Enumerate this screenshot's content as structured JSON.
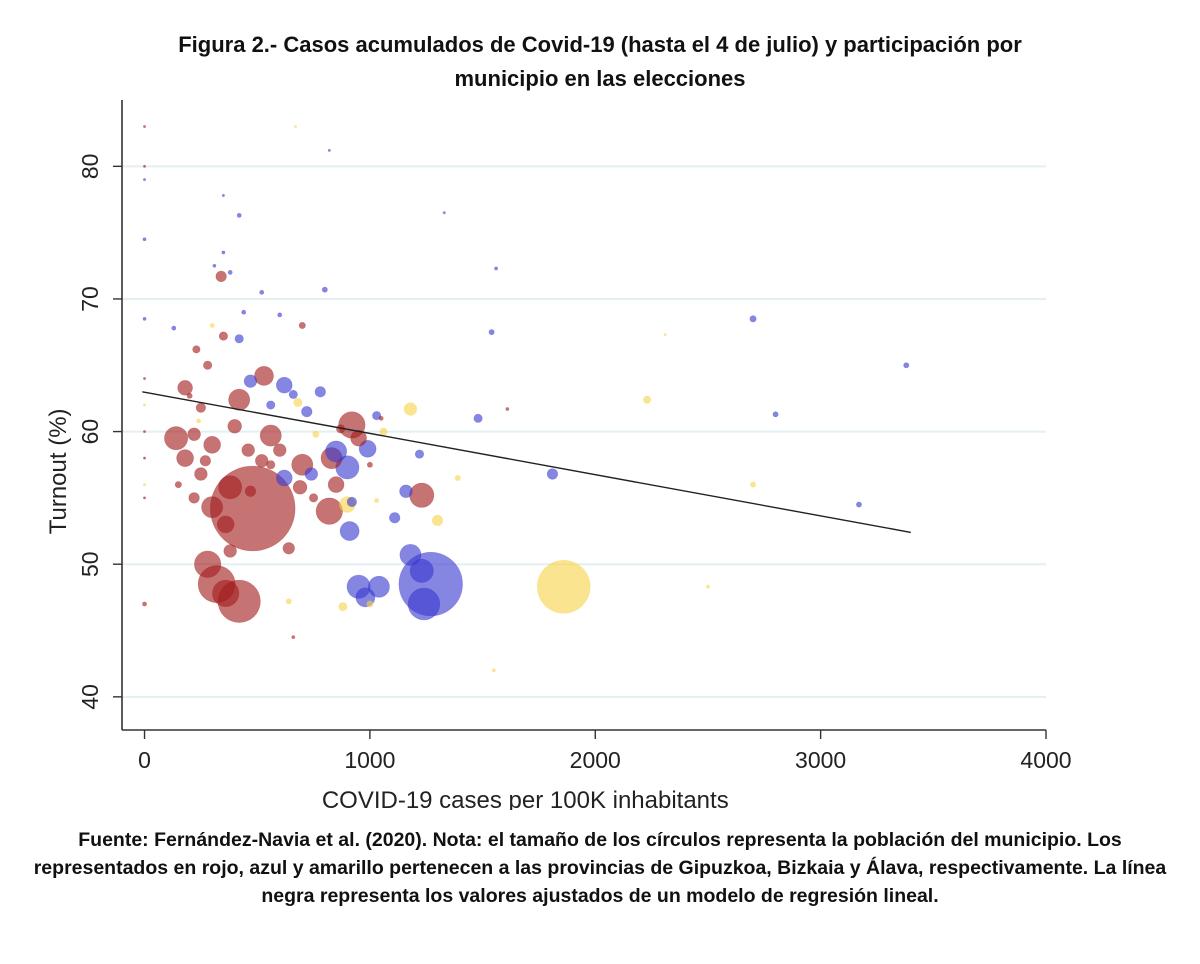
{
  "title_line1": "Figura 2.- Casos acumulados de Covid-19 (hasta el 4 de julio) y participación por",
  "title_line2": "municipio en las elecciones",
  "note": "Fuente: Fernández-Navia et al. (2020). Nota: el tamaño de los círculos representa la población del municipio. Los representados en rojo, azul y amarillo pertenecen a las provincias de Gipuzkoa, Bizkaia y Álava, respectivamente. La línea negra representa los valores ajustados de un modelo de regresión lineal.",
  "colors": {
    "Gipuzkoa": "#a31d1d",
    "Bizkaia": "#3a3ad0",
    "Álava": "#f7d44a",
    "fit": "#222222",
    "grid": "#e3eff2"
  },
  "chart_data": {
    "type": "scatter",
    "title": "",
    "xlabel": "COVID-19 cases per 100K inhabitants",
    "ylabel": "Turnout (%)",
    "xlim": [
      -100,
      4000
    ],
    "ylim": [
      37.5,
      85
    ],
    "xticks": [
      0,
      1000,
      2000,
      3000,
      4000
    ],
    "yticks": [
      40,
      50,
      60,
      70,
      80
    ],
    "grid": "horizontal",
    "size_encodes": "population",
    "fit_line": {
      "x": [
        -10,
        3400
      ],
      "y": [
        63.0,
        52.4
      ]
    },
    "series": [
      {
        "group": "Gipuzkoa",
        "points": [
          {
            "x": 480,
            "y": 54.2,
            "s": 8.0
          },
          {
            "x": 420,
            "y": 47.2,
            "s": 4.0
          },
          {
            "x": 320,
            "y": 48.5,
            "s": 3.5
          },
          {
            "x": 360,
            "y": 47.8,
            "s": 2.5
          },
          {
            "x": 280,
            "y": 50.0,
            "s": 2.5
          },
          {
            "x": 140,
            "y": 59.5,
            "s": 2.2
          },
          {
            "x": 420,
            "y": 62.4,
            "s": 2.0
          },
          {
            "x": 530,
            "y": 64.2,
            "s": 1.8
          },
          {
            "x": 180,
            "y": 58.0,
            "s": 1.6
          },
          {
            "x": 300,
            "y": 59.0,
            "s": 1.6
          },
          {
            "x": 300,
            "y": 54.3,
            "s": 2.0
          },
          {
            "x": 380,
            "y": 55.8,
            "s": 2.2
          },
          {
            "x": 560,
            "y": 59.7,
            "s": 2.0
          },
          {
            "x": 700,
            "y": 57.5,
            "s": 2.0
          },
          {
            "x": 820,
            "y": 54.0,
            "s": 2.5
          },
          {
            "x": 830,
            "y": 58.0,
            "s": 2.0
          },
          {
            "x": 850,
            "y": 56.0,
            "s": 1.5
          },
          {
            "x": 920,
            "y": 60.5,
            "s": 2.5
          },
          {
            "x": 950,
            "y": 59.5,
            "s": 1.5
          },
          {
            "x": 1230,
            "y": 55.2,
            "s": 2.3
          },
          {
            "x": 180,
            "y": 63.3,
            "s": 1.4
          },
          {
            "x": 340,
            "y": 71.7,
            "s": 1.0
          },
          {
            "x": 350,
            "y": 67.2,
            "s": 0.8
          },
          {
            "x": 280,
            "y": 65.0,
            "s": 0.8
          },
          {
            "x": 250,
            "y": 61.8,
            "s": 0.9
          },
          {
            "x": 220,
            "y": 59.8,
            "s": 1.2
          },
          {
            "x": 150,
            "y": 56.0,
            "s": 0.6
          },
          {
            "x": 220,
            "y": 55.0,
            "s": 1.0
          },
          {
            "x": 270,
            "y": 57.8,
            "s": 1.0
          },
          {
            "x": 250,
            "y": 56.8,
            "s": 1.2
          },
          {
            "x": 400,
            "y": 60.4,
            "s": 1.3
          },
          {
            "x": 460,
            "y": 58.6,
            "s": 1.2
          },
          {
            "x": 470,
            "y": 55.5,
            "s": 1.0
          },
          {
            "x": 520,
            "y": 57.8,
            "s": 1.2
          },
          {
            "x": 600,
            "y": 58.6,
            "s": 1.2
          },
          {
            "x": 640,
            "y": 51.2,
            "s": 1.1
          },
          {
            "x": 690,
            "y": 55.8,
            "s": 1.3
          },
          {
            "x": 380,
            "y": 51.0,
            "s": 1.2
          },
          {
            "x": 360,
            "y": 53.0,
            "s": 1.6
          },
          {
            "x": 230,
            "y": 66.2,
            "s": 0.7
          },
          {
            "x": 200,
            "y": 62.7,
            "s": 0.5
          },
          {
            "x": 700,
            "y": 68.0,
            "s": 0.6
          },
          {
            "x": 750,
            "y": 55.0,
            "s": 0.8
          },
          {
            "x": 560,
            "y": 57.5,
            "s": 0.8
          },
          {
            "x": 0,
            "y": 60.0,
            "s": 0.2
          },
          {
            "x": 0,
            "y": 64.0,
            "s": 0.2
          },
          {
            "x": 0,
            "y": 58.0,
            "s": 0.2
          },
          {
            "x": 0,
            "y": 55.0,
            "s": 0.2
          },
          {
            "x": 0,
            "y": 83.0,
            "s": 0.1
          },
          {
            "x": 0,
            "y": 80.0,
            "s": 0.1
          },
          {
            "x": 0,
            "y": 47.0,
            "s": 0.4
          },
          {
            "x": 1050,
            "y": 61.0,
            "s": 0.4
          },
          {
            "x": 1610,
            "y": 61.7,
            "s": 0.3
          },
          {
            "x": 660,
            "y": 44.5,
            "s": 0.3
          },
          {
            "x": 1000,
            "y": 57.5,
            "s": 0.5
          },
          {
            "x": 870,
            "y": 60.2,
            "s": 0.8
          }
        ]
      },
      {
        "group": "Bizkaia",
        "points": [
          {
            "x": 1270,
            "y": 48.5,
            "s": 6.0
          },
          {
            "x": 1240,
            "y": 47.0,
            "s": 3.0
          },
          {
            "x": 1180,
            "y": 50.7,
            "s": 2.0
          },
          {
            "x": 1230,
            "y": 49.5,
            "s": 2.2
          },
          {
            "x": 950,
            "y": 48.3,
            "s": 2.2
          },
          {
            "x": 1040,
            "y": 48.3,
            "s": 2.0
          },
          {
            "x": 980,
            "y": 47.5,
            "s": 1.8
          },
          {
            "x": 910,
            "y": 52.5,
            "s": 1.8
          },
          {
            "x": 900,
            "y": 57.3,
            "s": 2.2
          },
          {
            "x": 850,
            "y": 58.5,
            "s": 2.0
          },
          {
            "x": 990,
            "y": 58.7,
            "s": 1.6
          },
          {
            "x": 1160,
            "y": 55.5,
            "s": 1.2
          },
          {
            "x": 1110,
            "y": 53.5,
            "s": 1.0
          },
          {
            "x": 620,
            "y": 63.5,
            "s": 1.5
          },
          {
            "x": 470,
            "y": 63.8,
            "s": 1.2
          },
          {
            "x": 780,
            "y": 63.0,
            "s": 1.0
          },
          {
            "x": 720,
            "y": 61.5,
            "s": 1.0
          },
          {
            "x": 560,
            "y": 62.0,
            "s": 0.8
          },
          {
            "x": 620,
            "y": 56.5,
            "s": 1.5
          },
          {
            "x": 740,
            "y": 56.8,
            "s": 1.2
          },
          {
            "x": 1220,
            "y": 58.3,
            "s": 0.8
          },
          {
            "x": 1480,
            "y": 61.0,
            "s": 0.8
          },
          {
            "x": 1810,
            "y": 56.8,
            "s": 1.0
          },
          {
            "x": 2700,
            "y": 68.5,
            "s": 0.6
          },
          {
            "x": 2800,
            "y": 61.3,
            "s": 0.5
          },
          {
            "x": 3170,
            "y": 54.5,
            "s": 0.5
          },
          {
            "x": 3380,
            "y": 65.0,
            "s": 0.5
          },
          {
            "x": 1540,
            "y": 67.5,
            "s": 0.5
          },
          {
            "x": 1560,
            "y": 72.3,
            "s": 0.3
          },
          {
            "x": 1330,
            "y": 76.5,
            "s": 0.2
          },
          {
            "x": 420,
            "y": 67.0,
            "s": 0.8
          },
          {
            "x": 800,
            "y": 70.7,
            "s": 0.5
          },
          {
            "x": 520,
            "y": 70.5,
            "s": 0.4
          },
          {
            "x": 440,
            "y": 69.0,
            "s": 0.4
          },
          {
            "x": 380,
            "y": 72.0,
            "s": 0.4
          },
          {
            "x": 420,
            "y": 76.3,
            "s": 0.4
          },
          {
            "x": 350,
            "y": 73.5,
            "s": 0.3
          },
          {
            "x": 310,
            "y": 72.5,
            "s": 0.3
          },
          {
            "x": 130,
            "y": 67.8,
            "s": 0.4
          },
          {
            "x": 0,
            "y": 74.5,
            "s": 0.3
          },
          {
            "x": 0,
            "y": 79.0,
            "s": 0.2
          },
          {
            "x": 0,
            "y": 68.5,
            "s": 0.3
          },
          {
            "x": 820,
            "y": 81.2,
            "s": 0.2
          },
          {
            "x": 600,
            "y": 68.8,
            "s": 0.4
          },
          {
            "x": 660,
            "y": 62.8,
            "s": 0.8
          },
          {
            "x": 1030,
            "y": 61.2,
            "s": 0.8
          },
          {
            "x": 920,
            "y": 54.7,
            "s": 0.9
          },
          {
            "x": 350,
            "y": 77.8,
            "s": 0.2
          }
        ]
      },
      {
        "group": "Álava",
        "points": [
          {
            "x": 1860,
            "y": 48.3,
            "s": 5.0
          },
          {
            "x": 900,
            "y": 54.5,
            "s": 1.5
          },
          {
            "x": 1180,
            "y": 61.7,
            "s": 1.2
          },
          {
            "x": 1300,
            "y": 53.3,
            "s": 1.0
          },
          {
            "x": 2230,
            "y": 62.4,
            "s": 0.7
          },
          {
            "x": 880,
            "y": 46.8,
            "s": 0.8
          },
          {
            "x": 1000,
            "y": 47.0,
            "s": 0.6
          },
          {
            "x": 640,
            "y": 47.2,
            "s": 0.5
          },
          {
            "x": 2700,
            "y": 56.0,
            "s": 0.5
          },
          {
            "x": 1550,
            "y": 42.0,
            "s": 0.3
          },
          {
            "x": 670,
            "y": 83.0,
            "s": 0.2
          },
          {
            "x": 2310,
            "y": 67.3,
            "s": 0.2
          },
          {
            "x": 760,
            "y": 59.8,
            "s": 0.6
          },
          {
            "x": 1060,
            "y": 60.0,
            "s": 0.7
          },
          {
            "x": 680,
            "y": 62.2,
            "s": 0.8
          },
          {
            "x": 1390,
            "y": 56.5,
            "s": 0.5
          },
          {
            "x": 2500,
            "y": 48.3,
            "s": 0.3
          },
          {
            "x": 300,
            "y": 68.0,
            "s": 0.4
          },
          {
            "x": 0,
            "y": 62.0,
            "s": 0.2
          },
          {
            "x": 0,
            "y": 56.0,
            "s": 0.2
          },
          {
            "x": 240,
            "y": 60.8,
            "s": 0.4
          },
          {
            "x": 1030,
            "y": 54.8,
            "s": 0.4
          }
        ]
      }
    ]
  }
}
